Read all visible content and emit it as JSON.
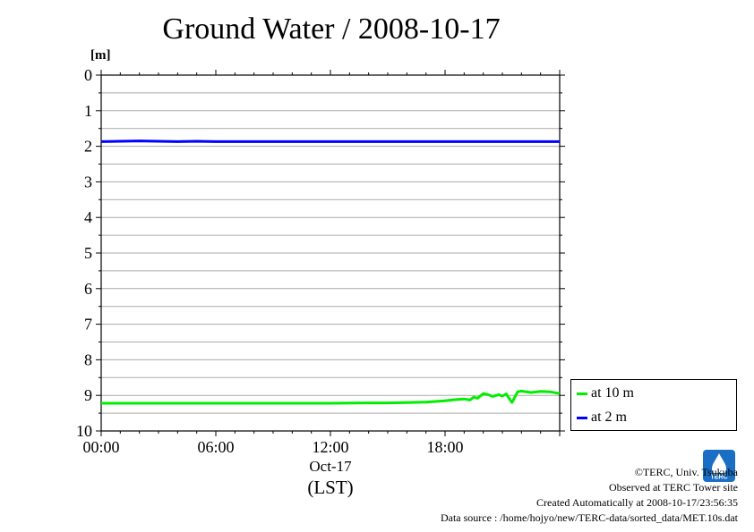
{
  "chart_data": {
    "type": "line",
    "title": "Ground Water / 2008-10-17",
    "ylabel": "[m]",
    "xlabel": "(LST)",
    "date_label": "Oct-17",
    "x_ticks": [
      "00:00",
      "06:00",
      "12:00",
      "18:00"
    ],
    "x_range_hours": [
      0,
      24
    ],
    "ylim": [
      0,
      10
    ],
    "y_inverted": true,
    "y_ticks": [
      0,
      1,
      2,
      3,
      4,
      5,
      6,
      7,
      8,
      9,
      10
    ],
    "grid": true,
    "legend_position": "right-bottom",
    "series": [
      {
        "name": "at 10 m",
        "color": "#00ee00",
        "x_hours": [
          0,
          3,
          6,
          9,
          12,
          14,
          15,
          16,
          17,
          18,
          18.5,
          19,
          19.3,
          19.5,
          19.7,
          20,
          20.2,
          20.5,
          20.8,
          21,
          21.2,
          21.5,
          21.8,
          22,
          22.5,
          23,
          23.5,
          24
        ],
        "y": [
          9.22,
          9.22,
          9.22,
          9.22,
          9.22,
          9.21,
          9.21,
          9.2,
          9.19,
          9.15,
          9.12,
          9.1,
          9.13,
          9.05,
          9.08,
          8.95,
          8.97,
          9.03,
          8.98,
          9.02,
          8.96,
          9.2,
          8.9,
          8.88,
          8.92,
          8.89,
          8.9,
          8.95
        ]
      },
      {
        "name": "at 2 m",
        "color": "#0000ff",
        "x_hours": [
          0,
          1,
          2,
          3,
          4,
          5,
          6,
          8,
          10,
          12,
          14,
          16,
          18,
          20,
          22,
          24
        ],
        "y": [
          1.87,
          1.86,
          1.85,
          1.86,
          1.87,
          1.86,
          1.87,
          1.87,
          1.87,
          1.87,
          1.87,
          1.87,
          1.87,
          1.87,
          1.87,
          1.87
        ]
      }
    ]
  },
  "footer": {
    "copyright": "©TERC, Univ. Tsukuba",
    "observed": "Observed at TERC Tower site",
    "created": "Created Automatically at 2008-10-17/23:56:35",
    "source": "Data source : /home/hojyo/new/TERC-data/sorted_data/MET.10s.dat"
  },
  "logo_text": "TERC"
}
